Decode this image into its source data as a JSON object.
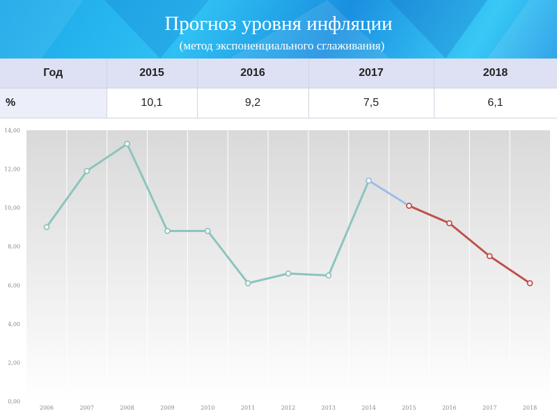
{
  "header": {
    "title": "Прогноз уровня инфляции",
    "subtitle": "(метод экспоненциального сглаживания)"
  },
  "table": {
    "header": [
      "Год",
      "2015",
      "2016",
      "2017",
      "2018"
    ],
    "row": [
      "%",
      "10,1",
      "9,2",
      "7,5",
      "6,1"
    ]
  },
  "chart_data": {
    "type": "line",
    "title": "",
    "xlabel": "",
    "ylabel": "",
    "x": [
      "2006",
      "2007",
      "2008",
      "2009",
      "2010",
      "2011",
      "2012",
      "2013",
      "2014",
      "2015",
      "2016",
      "2017",
      "2018"
    ],
    "ylim": [
      0,
      14
    ],
    "y_ticks": [
      "0,00",
      "2,00",
      "4,00",
      "6,00",
      "8,00",
      "10,00",
      "12,00",
      "14,00"
    ],
    "grid": "vertical",
    "series": [
      {
        "color": "#8cc4bd",
        "x": [
          "2006",
          "2007",
          "2008",
          "2009",
          "2010",
          "2011",
          "2012",
          "2013",
          "2014"
        ],
        "values": [
          9.0,
          11.9,
          13.3,
          8.8,
          8.8,
          6.1,
          6.6,
          6.5,
          11.4
        ]
      },
      {
        "color": "#9cbde6",
        "x": [
          "2014",
          "2015"
        ],
        "values": [
          11.4,
          10.1
        ]
      },
      {
        "color": "#c0504d",
        "x": [
          "2015",
          "2016",
          "2017",
          "2018"
        ],
        "values": [
          10.1,
          9.2,
          7.5,
          6.1
        ]
      }
    ]
  }
}
